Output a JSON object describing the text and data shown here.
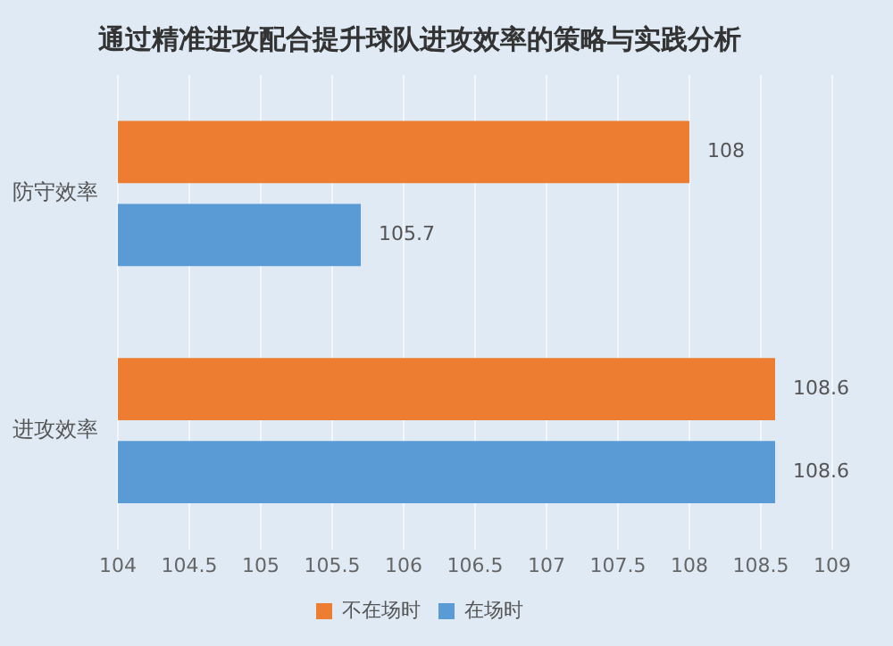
{
  "chart_data": {
    "type": "bar",
    "orientation": "horizontal",
    "title": "通过精准进攻配合提升球队进攻效率的策略与实践分析",
    "categories": [
      "防守效率",
      "进攻效率"
    ],
    "series": [
      {
        "name": "不在场时",
        "color": "#ed7d31",
        "values": [
          108,
          108.6
        ]
      },
      {
        "name": "在场时",
        "color": "#5b9bd5",
        "values": [
          105.7,
          108.6
        ]
      }
    ],
    "xlim": [
      104,
      109
    ],
    "xticks": [
      104,
      104.5,
      105,
      105.5,
      106,
      106.5,
      107,
      107.5,
      108,
      108.5,
      109
    ],
    "grid": "x",
    "legend": "bottom",
    "data_labels": true
  }
}
